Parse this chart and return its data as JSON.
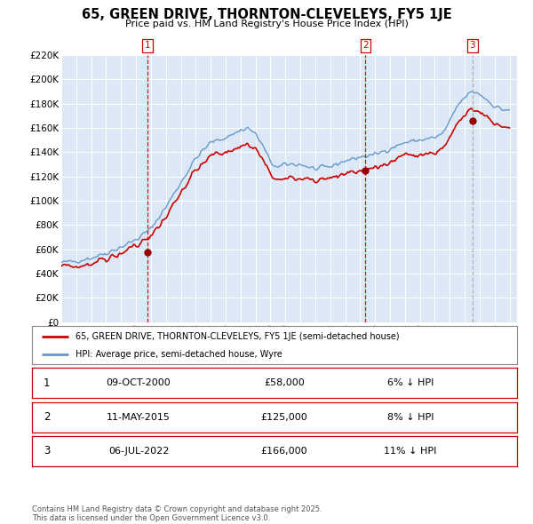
{
  "title": "65, GREEN DRIVE, THORNTON-CLEVELEYS, FY5 1JE",
  "subtitle": "Price paid vs. HM Land Registry's House Price Index (HPI)",
  "ylim": [
    0,
    220000
  ],
  "ytick_step": 20000,
  "background_color": "#ffffff",
  "plot_bg_color": "#dce8f5",
  "grid_color": "#ffffff",
  "hpi_color": "#6699cc",
  "price_color": "#cc0000",
  "vline_color_red": "#cc0000",
  "vline_color_grey": "#aaaaaa",
  "sale_marker_color": "#990000",
  "legend_label_price": "65, GREEN DRIVE, THORNTON-CLEVELEYS, FY5 1JE (semi-detached house)",
  "legend_label_hpi": "HPI: Average price, semi-detached house, Wyre",
  "sales": [
    {
      "label": "1",
      "date_str": "09-OCT-2000",
      "date_x": 2000.77,
      "price": 58000,
      "pct": "6%",
      "dir": "↓",
      "vline": "red"
    },
    {
      "label": "2",
      "date_str": "11-MAY-2015",
      "date_x": 2015.36,
      "price": 125000,
      "pct": "8%",
      "dir": "↓",
      "vline": "red"
    },
    {
      "label": "3",
      "date_str": "06-JUL-2022",
      "date_x": 2022.51,
      "price": 166000,
      "pct": "11%",
      "dir": "↓",
      "vline": "grey"
    }
  ],
  "footer": "Contains HM Land Registry data © Crown copyright and database right 2025.\nThis data is licensed under the Open Government Licence v3.0.",
  "xlim_start": 1995.0,
  "xlim_end": 2025.5
}
